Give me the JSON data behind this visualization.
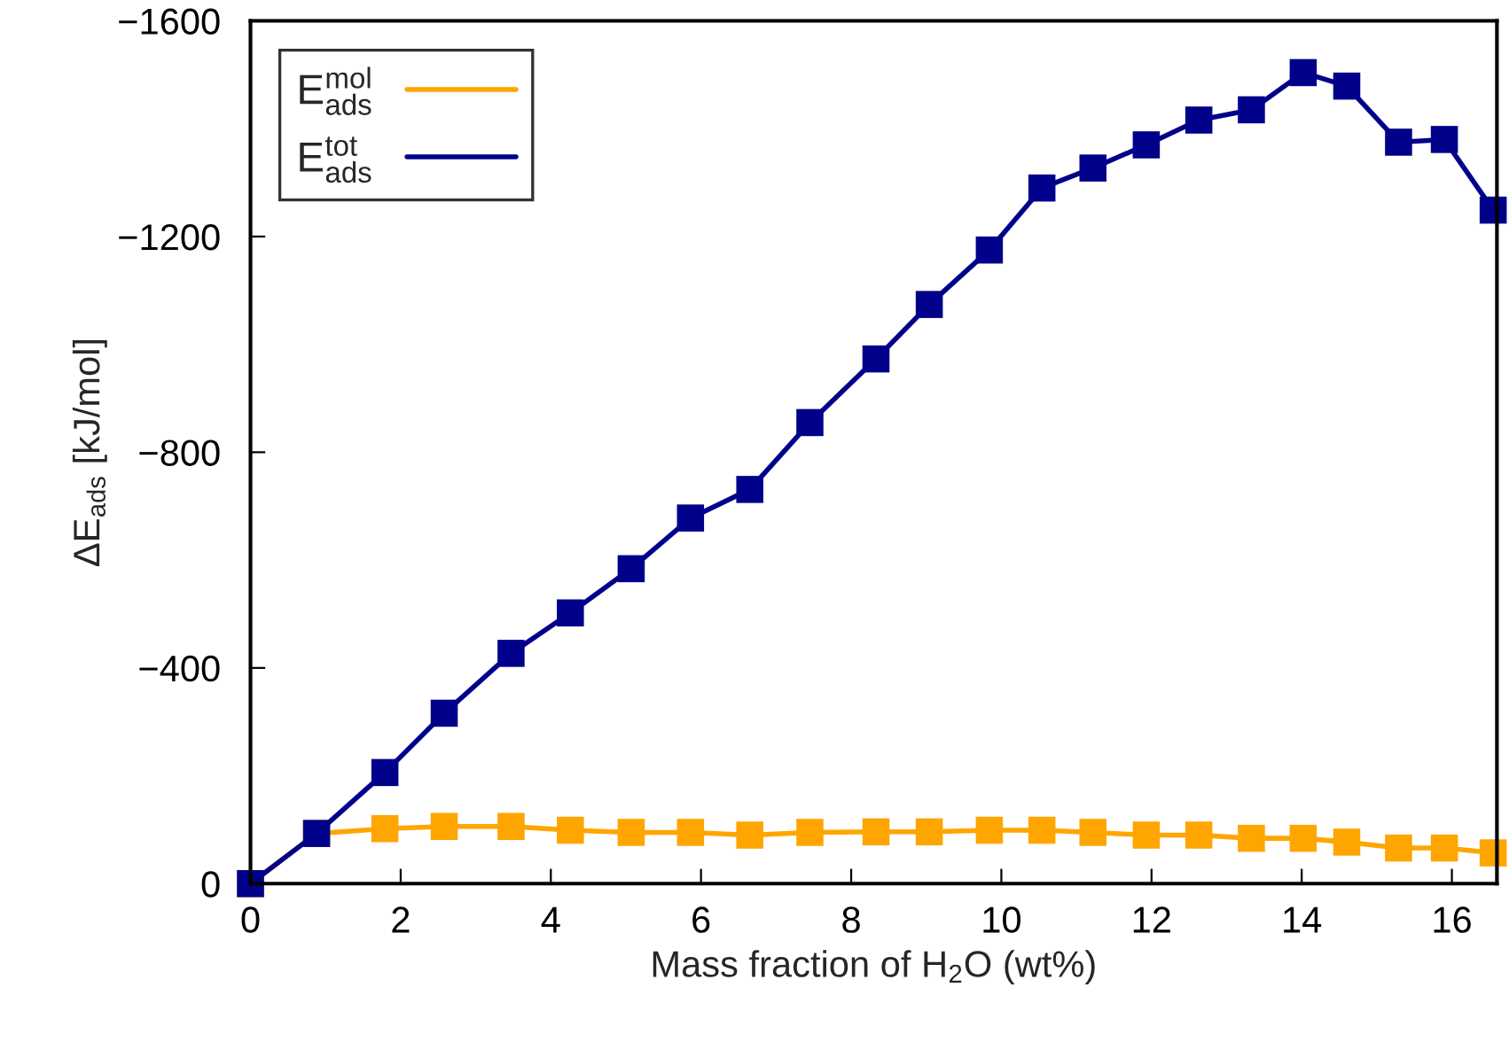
{
  "chart_data": {
    "type": "line",
    "xlabel": "Mass fraction of H$_{2}$O (wt%)",
    "ylabel": "ΔE$_{ads}$ [kJ/mol]",
    "x": [
      0,
      0.88,
      1.79,
      2.58,
      3.47,
      4.26,
      5.07,
      5.86,
      6.65,
      7.45,
      8.33,
      9.04,
      9.84,
      10.54,
      11.22,
      11.93,
      12.63,
      13.33,
      14.02,
      14.6,
      15.29,
      15.9,
      16.55
    ],
    "series": [
      {
        "name": "E$^{mol}$$_{ads}$",
        "color": "#ffa500",
        "values": [
          0,
          -93,
          -102,
          -106,
          -106,
          -99,
          -95,
          -95,
          -90,
          -95,
          -96,
          -96,
          -99,
          -99,
          -95,
          -90,
          -90,
          -84,
          -84,
          -77,
          -66,
          -66,
          -57
        ]
      },
      {
        "name": "E$^{tot}$$_{ads}$",
        "color": "#00008b",
        "values": [
          0,
          -93,
          -206,
          -316,
          -427,
          -502,
          -584,
          -678,
          -731,
          -855,
          -973,
          -1074,
          -1175,
          -1290,
          -1327,
          -1370,
          -1416,
          -1435,
          -1504,
          -1479,
          -1375,
          -1380,
          -1249
        ]
      }
    ],
    "xlim": [
      0,
      16.6
    ],
    "xticks": [
      0,
      2,
      4,
      6,
      8,
      10,
      12,
      14,
      16
    ],
    "ylim": [
      0,
      -1600
    ],
    "yticks": [
      0,
      {
        "value": -400,
        "label": "−400"
      },
      {
        "value": -800,
        "label": "−800"
      },
      {
        "value": -1200,
        "label": "−1200"
      },
      {
        "value": -1600,
        "label": "−1600"
      }
    ],
    "marker": "square",
    "line_style": "solid",
    "grid": false,
    "legend": "top left"
  }
}
